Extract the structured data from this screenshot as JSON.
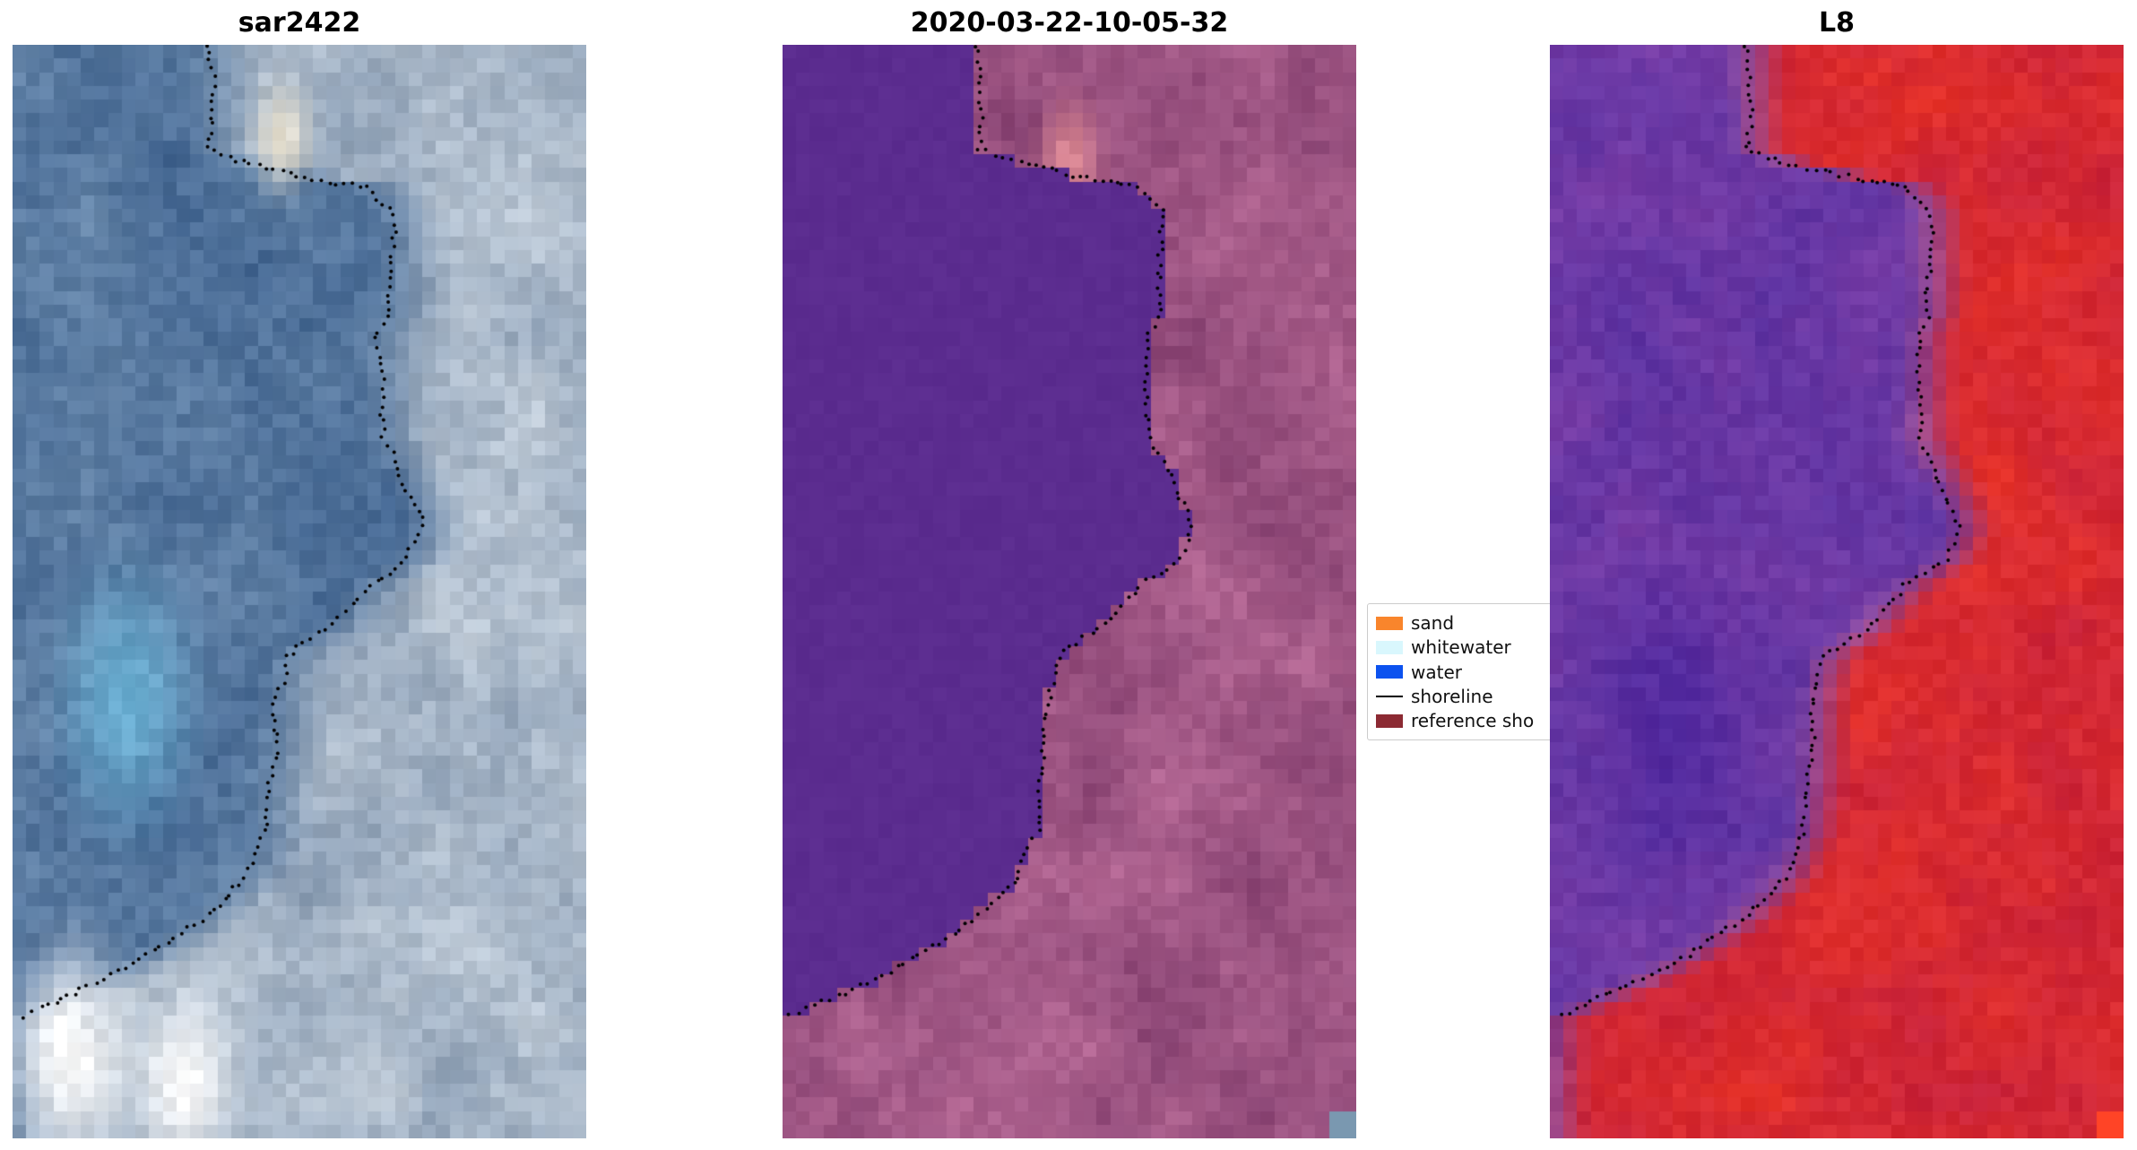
{
  "figure": {
    "background": "#ffffff",
    "panels": [
      {
        "id": "sar2422",
        "title": "sar2422"
      },
      {
        "id": "2020-03-22-10-05-32",
        "title": "2020-03-22-10-05-32"
      },
      {
        "id": "L8",
        "title": "L8"
      }
    ],
    "legend": {
      "items": [
        {
          "label": "sand",
          "type": "patch",
          "color": "#f9852c"
        },
        {
          "label": "whitewater",
          "type": "patch",
          "color": "#d9f7fd"
        },
        {
          "label": "water",
          "type": "patch",
          "color": "#0c52ef"
        },
        {
          "label": "shoreline",
          "type": "line",
          "color": "#000000"
        },
        {
          "label": "reference sho",
          "type": "patch",
          "color": "#8c2a33"
        }
      ]
    }
  },
  "chart_data": {
    "type": "heatmap",
    "title": "",
    "legend_entries": [
      "sand",
      "whitewater",
      "water",
      "shoreline",
      "reference sho"
    ],
    "panels": [
      {
        "title": "sar2422",
        "kind": "SAR backscatter image with detected shoreline points",
        "style": "sar",
        "palette": {
          "water_dark": "#3c5f8c",
          "water_light": "#6c8cae",
          "land_dark": "#8296ae",
          "land_light": "#ccd6e0",
          "cyan_patch": "#6fb9dc",
          "warm_patch": "#efe6d2",
          "white_patch": "#fdfdfd"
        }
      },
      {
        "title": "2020-03-22-10-05-32",
        "kind": "classified optical image: flat purple water left of shoreline, magenta land right",
        "style": "classified",
        "palette": {
          "water_flat": "#5b2c8f",
          "land_dark": "#7d3a6a",
          "land_light": "#bc6e9a",
          "salmon_patch": "#e28d92",
          "corner_patch": "#7a98b0"
        }
      },
      {
        "title": "L8",
        "kind": "Landsat-8 false-colour image: purple water left, red land right",
        "style": "l8",
        "palette": {
          "purple_dark": "#5630a0",
          "purple_light": "#8040a8",
          "red_dark": "#c21f3e",
          "red_light": "#ea3426",
          "dark_blob": "#3f1f9a",
          "transition": "#c87a98",
          "corner_patch": "#ff4426"
        }
      }
    ],
    "shoreline_points_normalized": [
      [
        0.345,
        0.0
      ],
      [
        0.345,
        0.095
      ],
      [
        0.42,
        0.11
      ],
      [
        0.555,
        0.125
      ],
      [
        0.62,
        0.13
      ],
      [
        0.66,
        0.15
      ],
      [
        0.662,
        0.25
      ],
      [
        0.64,
        0.262
      ],
      [
        0.641,
        0.36
      ],
      [
        0.68,
        0.395
      ],
      [
        0.715,
        0.44
      ],
      [
        0.69,
        0.47
      ],
      [
        0.62,
        0.495
      ],
      [
        0.56,
        0.53
      ],
      [
        0.48,
        0.56
      ],
      [
        0.462,
        0.59
      ],
      [
        0.455,
        0.66
      ],
      [
        0.442,
        0.72
      ],
      [
        0.408,
        0.762
      ],
      [
        0.33,
        0.8
      ],
      [
        0.24,
        0.833
      ],
      [
        0.15,
        0.858
      ],
      [
        0.06,
        0.878
      ],
      [
        0.018,
        0.888
      ]
    ]
  }
}
